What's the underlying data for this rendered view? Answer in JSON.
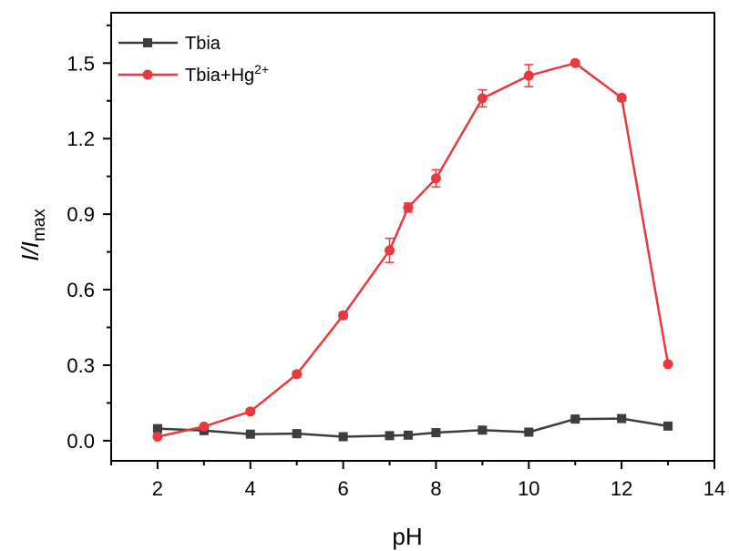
{
  "chart_data": {
    "type": "line",
    "title": "",
    "xlabel": "pH",
    "ylabel": {
      "base": "I/I",
      "subscript": "max"
    },
    "xlim": [
      1,
      14
    ],
    "ylim": [
      -0.08,
      1.7
    ],
    "xticks": [
      2,
      4,
      6,
      8,
      10,
      12,
      14
    ],
    "xtick_labels": [
      "2",
      "4",
      "6",
      "8",
      "10",
      "12",
      "14"
    ],
    "yticks": [
      0.0,
      0.3,
      0.6,
      0.9,
      1.2,
      1.5
    ],
    "ytick_labels": [
      "0.0",
      "0.3",
      "0.6",
      "0.9",
      "1.2",
      "1.5"
    ],
    "grid": false,
    "legend_position": "top-left",
    "series": [
      {
        "name": "Tbia",
        "label": "Tbia",
        "superscript": "",
        "color": "#3d3d3d",
        "marker": "square",
        "x": [
          2,
          3,
          4,
          5,
          6,
          7,
          7.4,
          8,
          9,
          10,
          11,
          12,
          13
        ],
        "y": [
          0.048,
          0.04,
          0.026,
          0.028,
          0.016,
          0.02,
          0.022,
          0.032,
          0.042,
          0.034,
          0.086,
          0.088,
          0.058
        ],
        "err": [
          0.004,
          0.004,
          0.004,
          0.004,
          0.004,
          0.004,
          0.004,
          0.004,
          0.004,
          0.004,
          0.006,
          0.008,
          0.012
        ]
      },
      {
        "name": "Tbia+Hg2+",
        "label": "Tbia+Hg",
        "superscript": "2+",
        "color": "#e8393e",
        "marker": "circle",
        "x": [
          2,
          3,
          4,
          5,
          6,
          7,
          7.4,
          8,
          9,
          10,
          11,
          12,
          13
        ],
        "y": [
          0.016,
          0.056,
          0.116,
          0.264,
          0.498,
          0.756,
          0.926,
          1.042,
          1.36,
          1.45,
          1.5,
          1.362,
          0.304
        ],
        "err": [
          0.004,
          0.004,
          0.008,
          0.01,
          0.012,
          0.048,
          0.018,
          0.034,
          0.034,
          0.044,
          0.008,
          0.012,
          0.006
        ]
      }
    ]
  }
}
